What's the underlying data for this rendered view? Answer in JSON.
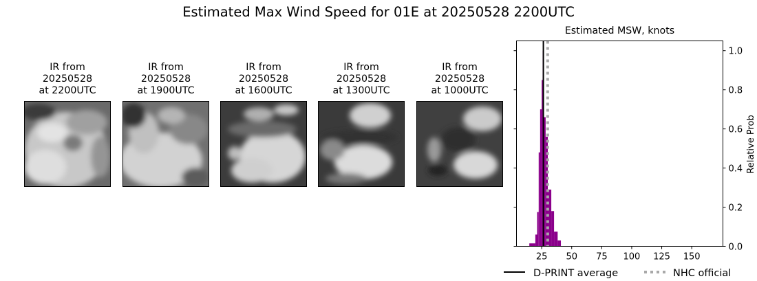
{
  "figure": {
    "suptitle": "Estimated Max Wind Speed for 01E at 20250528 2200UTC"
  },
  "ir_panels": [
    {
      "line1": "IR from",
      "line2": "20250528",
      "line3": "at 2200UTC",
      "tone": "bright"
    },
    {
      "line1": "IR from",
      "line2": "20250528",
      "line3": "at 1900UTC",
      "tone": "bright"
    },
    {
      "line1": "IR from",
      "line2": "20250528",
      "line3": "at 1600UTC",
      "tone": "mixed"
    },
    {
      "line1": "IR from",
      "line2": "20250528",
      "line3": "at 1300UTC",
      "tone": "mixed"
    },
    {
      "line1": "IR from",
      "line2": "20250528",
      "line3": "at 1000UTC",
      "tone": "dark"
    }
  ],
  "colors": {
    "histogram": "#8b008b",
    "dprint_line": "#000000",
    "nhc_line": "#a9a9a9"
  },
  "chart_data": {
    "type": "bar",
    "title": "Estimated MSW, knots",
    "xlabel": "",
    "ylabel": "Relative Prob",
    "xlim": [
      4,
      176
    ],
    "ylim": [
      0,
      1.05
    ],
    "xticks": [
      25,
      50,
      75,
      100,
      125,
      150
    ],
    "yticks": [
      0.0,
      0.2,
      0.4,
      0.6,
      0.8,
      1.0
    ],
    "ytick_labels": [
      "0.0",
      "0.2",
      "0.4",
      "0.6",
      "0.8",
      "1.0"
    ],
    "y_axis_side": "right",
    "grid": false,
    "bins": [
      {
        "x0": 14.7,
        "x1": 19.7,
        "value": 0.015
      },
      {
        "x0": 19.7,
        "x1": 21.2,
        "value": 0.06
      },
      {
        "x0": 21.2,
        "x1": 22.5,
        "value": 0.175
      },
      {
        "x0": 22.5,
        "x1": 23.7,
        "value": 0.48
      },
      {
        "x0": 23.7,
        "x1": 25.0,
        "value": 0.7
      },
      {
        "x0": 25.0,
        "x1": 25.8,
        "value": 0.85
      },
      {
        "x0": 25.8,
        "x1": 26.7,
        "value": 1.0
      },
      {
        "x0": 26.7,
        "x1": 28.3,
        "value": 0.66
      },
      {
        "x0": 28.3,
        "x1": 30.1,
        "value": 0.56
      },
      {
        "x0": 30.1,
        "x1": 33.0,
        "value": 0.29
      },
      {
        "x0": 33.0,
        "x1": 35.3,
        "value": 0.18
      },
      {
        "x0": 35.3,
        "x1": 38.3,
        "value": 0.075
      },
      {
        "x0": 38.3,
        "x1": 41.0,
        "value": 0.03
      }
    ],
    "vlines": [
      {
        "name": "D-PRINT average",
        "x": 26.4,
        "style": "solid",
        "color": "#000000"
      },
      {
        "name": "NHC official",
        "x": 30.0,
        "style": "dotted",
        "color": "#a9a9a9"
      }
    ],
    "legend": {
      "position": "below",
      "entries": [
        "D-PRINT average",
        "NHC official"
      ]
    }
  }
}
